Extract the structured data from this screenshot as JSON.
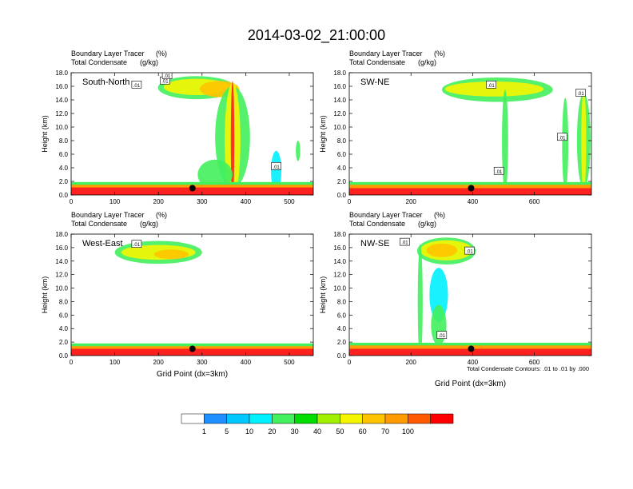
{
  "title": "2014-03-02_21:00:00",
  "panel_header": {
    "line1": "Boundary Layer Tracer",
    "unit1": "(%)",
    "line2": "Total Condensate",
    "unit2": "(g/kg)"
  },
  "ylabel": "Height (km)",
  "xlabel": "Grid Point (dx=3km)",
  "contour_note": "Total Condensate Contours: .01 to .01 by .000",
  "contour_label": ".01",
  "chart_data": [
    {
      "type": "heatmap",
      "label": "South-North",
      "x_ticks": [
        "0",
        "100",
        "200",
        "300",
        "400",
        "500"
      ],
      "xlim": [
        0,
        555
      ],
      "y_ticks": [
        "0.0",
        "2.0",
        "4.0",
        "6.0",
        "8.0",
        "10.0",
        "12.0",
        "14.0",
        "16.0",
        "18.0"
      ],
      "ylim": [
        0,
        18
      ],
      "show_xlabel": false,
      "features": [
        {
          "kind": "blob",
          "cx": 287,
          "cy": 15.8,
          "rx": 88,
          "ry": 1.7,
          "color": "#43f05d"
        },
        {
          "kind": "blob",
          "cx": 287,
          "cy": 15.9,
          "rx": 75,
          "ry": 1.2,
          "color": "#f5f500"
        },
        {
          "kind": "blob",
          "cx": 340,
          "cy": 15.6,
          "rx": 45,
          "ry": 1.2,
          "color": "#ffc400"
        },
        {
          "kind": "blob",
          "cx": 370,
          "cy": 8.5,
          "rx": 40,
          "ry": 7.5,
          "color": "#43f05d"
        },
        {
          "kind": "blob",
          "cx": 370,
          "cy": 8.0,
          "rx": 18,
          "ry": 8.5,
          "color": "#f5f500"
        },
        {
          "kind": "blob",
          "cx": 370,
          "cy": 8.0,
          "rx": 4,
          "ry": 8.8,
          "color": "#ff2020"
        },
        {
          "kind": "blob",
          "cx": 330,
          "cy": 3.0,
          "rx": 40,
          "ry": 2.2,
          "color": "#43f05d"
        },
        {
          "kind": "blob",
          "cx": 470,
          "cy": 3.5,
          "rx": 12,
          "ry": 3.0,
          "color": "#00f0ff"
        },
        {
          "kind": "blob",
          "cx": 520,
          "cy": 6.5,
          "rx": 5,
          "ry": 1.5,
          "color": "#43f05d"
        }
      ],
      "surface_band": [
        {
          "x0": 0,
          "x1": 555,
          "top": 1.1,
          "color": "#ff2020"
        },
        {
          "x0": 0,
          "x1": 555,
          "top": 1.5,
          "color": "#ff9a00"
        },
        {
          "x0": 0,
          "x1": 555,
          "top": 1.9,
          "color": "#43f05d"
        }
      ],
      "contour_labels": [
        {
          "x": 150,
          "y": 16.2
        },
        {
          "x": 215,
          "y": 16.8
        },
        {
          "x": 220,
          "y": 17.6
        },
        {
          "x": 470,
          "y": 4.2
        }
      ],
      "marker": {
        "x": 278,
        "y": 1.0
      }
    },
    {
      "type": "heatmap",
      "label": "SW-NE",
      "x_ticks": [
        "0",
        "200",
        "400",
        "600"
      ],
      "xlim": [
        0,
        785
      ],
      "y_ticks": [
        "0.0",
        "2.0",
        "4.0",
        "6.0",
        "8.0",
        "10.0",
        "12.0",
        "14.0",
        "16.0",
        "18.0"
      ],
      "ylim": [
        0,
        18
      ],
      "show_xlabel": false,
      "features": [
        {
          "kind": "blob",
          "cx": 480,
          "cy": 15.5,
          "rx": 180,
          "ry": 1.8,
          "color": "#43f05d"
        },
        {
          "kind": "blob",
          "cx": 470,
          "cy": 15.6,
          "rx": 160,
          "ry": 1.1,
          "color": "#f5f500"
        },
        {
          "kind": "blob",
          "cx": 505,
          "cy": 8.0,
          "rx": 10,
          "ry": 7.5,
          "color": "#43f05d"
        },
        {
          "kind": "blob",
          "cx": 700,
          "cy": 7.5,
          "rx": 10,
          "ry": 6.8,
          "color": "#43f05d"
        },
        {
          "kind": "blob",
          "cx": 760,
          "cy": 8.0,
          "rx": 22,
          "ry": 7.0,
          "color": "#43f05d"
        },
        {
          "kind": "blob",
          "cx": 760,
          "cy": 8.0,
          "rx": 8,
          "ry": 7.5,
          "color": "#f5f500"
        }
      ],
      "surface_band": [
        {
          "x0": 0,
          "x1": 785,
          "top": 1.0,
          "color": "#ff2020"
        },
        {
          "x0": 0,
          "x1": 785,
          "top": 1.5,
          "color": "#ff9a00"
        },
        {
          "x0": 0,
          "x1": 785,
          "top": 1.9,
          "color": "#43f05d"
        }
      ],
      "contour_labels": [
        {
          "x": 460,
          "y": 16.2
        },
        {
          "x": 485,
          "y": 3.5
        },
        {
          "x": 690,
          "y": 8.5
        },
        {
          "x": 750,
          "y": 15.0
        }
      ],
      "marker": {
        "x": 395,
        "y": 1.0
      }
    },
    {
      "type": "heatmap",
      "label": "West-East",
      "x_ticks": [
        "0",
        "100",
        "200",
        "300",
        "400",
        "500"
      ],
      "xlim": [
        0,
        555
      ],
      "y_ticks": [
        "0.0",
        "2.0",
        "4.0",
        "6.0",
        "8.0",
        "10.0",
        "12.0",
        "14.0",
        "16.0",
        "18.0"
      ],
      "ylim": [
        0,
        18
      ],
      "show_xlabel": true,
      "features": [
        {
          "kind": "blob",
          "cx": 200,
          "cy": 15.3,
          "rx": 100,
          "ry": 1.7,
          "color": "#43f05d"
        },
        {
          "kind": "blob",
          "cx": 200,
          "cy": 15.3,
          "rx": 85,
          "ry": 1.1,
          "color": "#f5f500"
        },
        {
          "kind": "blob",
          "cx": 230,
          "cy": 15.0,
          "rx": 40,
          "ry": 0.7,
          "color": "#ffc400"
        }
      ],
      "surface_band": [
        {
          "x0": 0,
          "x1": 555,
          "top": 1.0,
          "color": "#ff2020"
        },
        {
          "x0": 0,
          "x1": 555,
          "top": 1.4,
          "color": "#ff9a00"
        },
        {
          "x0": 0,
          "x1": 555,
          "top": 1.8,
          "color": "#43f05d"
        }
      ],
      "contour_labels": [
        {
          "x": 150,
          "y": 16.5
        }
      ],
      "marker": {
        "x": 278,
        "y": 1.0
      }
    },
    {
      "type": "heatmap",
      "label": "NW-SE",
      "x_ticks": [
        "0",
        "200",
        "400",
        "600"
      ],
      "xlim": [
        0,
        785
      ],
      "y_ticks": [
        "0.0",
        "2.0",
        "4.0",
        "6.0",
        "8.0",
        "10.0",
        "12.0",
        "14.0",
        "16.0",
        "18.0"
      ],
      "ylim": [
        0,
        18
      ],
      "show_xlabel": true,
      "features": [
        {
          "kind": "blob",
          "cx": 315,
          "cy": 15.5,
          "rx": 95,
          "ry": 2.0,
          "color": "#43f05d"
        },
        {
          "kind": "blob",
          "cx": 315,
          "cy": 15.6,
          "rx": 85,
          "ry": 1.5,
          "color": "#f5f500"
        },
        {
          "kind": "blob",
          "cx": 300,
          "cy": 15.6,
          "rx": 50,
          "ry": 1.0,
          "color": "#ffc400"
        },
        {
          "kind": "blob",
          "cx": 230,
          "cy": 8.0,
          "rx": 8,
          "ry": 8.5,
          "color": "#43f05d"
        },
        {
          "kind": "blob",
          "cx": 290,
          "cy": 9.0,
          "rx": 30,
          "ry": 4.0,
          "color": "#00f0ff"
        },
        {
          "kind": "blob",
          "cx": 290,
          "cy": 4.5,
          "rx": 25,
          "ry": 3.0,
          "color": "#43f05d"
        }
      ],
      "surface_band": [
        {
          "x0": 0,
          "x1": 785,
          "top": 1.0,
          "color": "#ff2020"
        },
        {
          "x0": 0,
          "x1": 785,
          "top": 1.5,
          "color": "#ff9a00"
        },
        {
          "x0": 0,
          "x1": 785,
          "top": 1.9,
          "color": "#43f05d"
        }
      ],
      "contour_labels": [
        {
          "x": 180,
          "y": 16.8
        },
        {
          "x": 390,
          "y": 15.5
        },
        {
          "x": 300,
          "y": 3.0
        }
      ],
      "marker": {
        "x": 395,
        "y": 1.0
      }
    }
  ],
  "colorbar": {
    "labels": [
      "1",
      "5",
      "10",
      "20",
      "30",
      "40",
      "50",
      "60",
      "70",
      "100"
    ],
    "colors": [
      "#ffffff",
      "#1e90ff",
      "#00c8ff",
      "#00f0ff",
      "#43f05d",
      "#00dd00",
      "#a0f000",
      "#f5f500",
      "#ffc400",
      "#ff9a00",
      "#ff5a00",
      "#ff0000"
    ]
  }
}
